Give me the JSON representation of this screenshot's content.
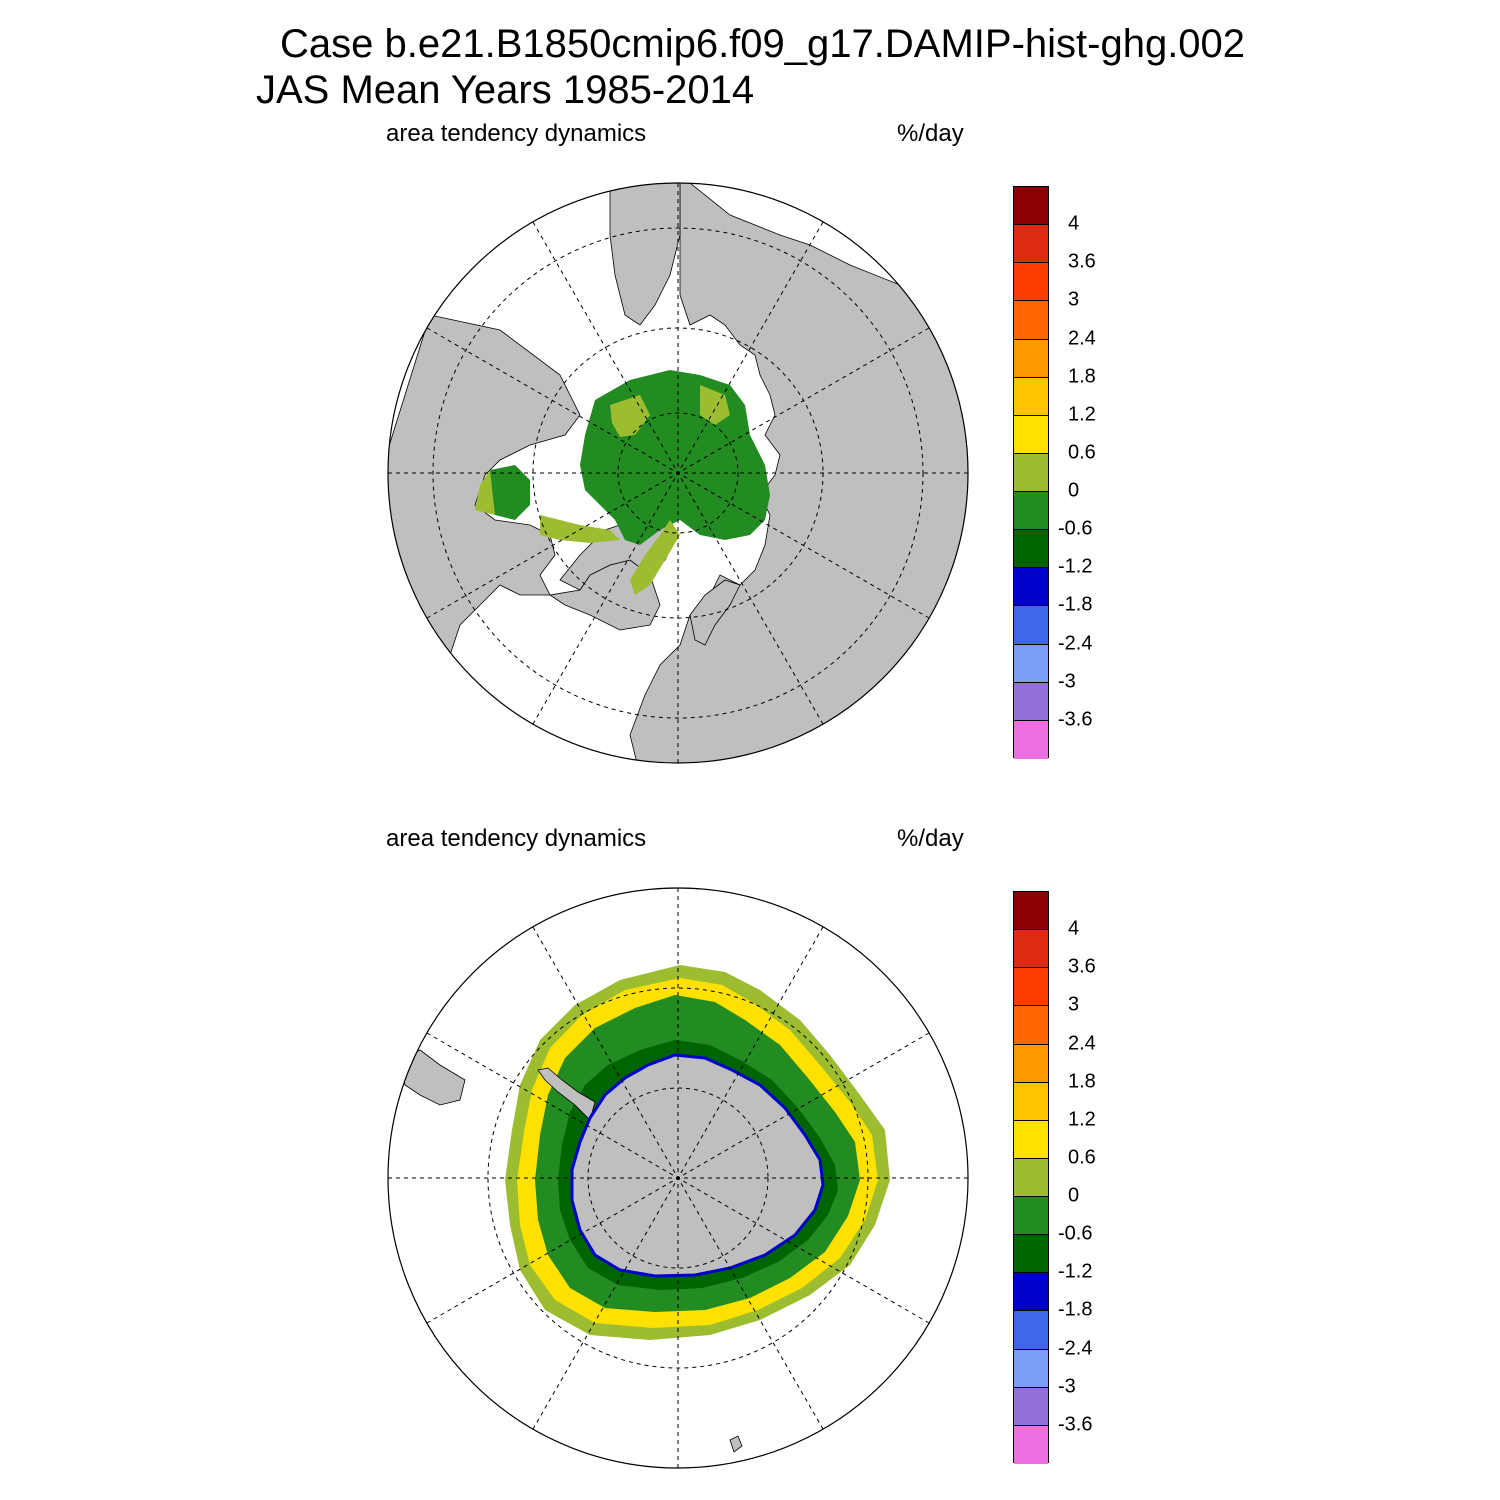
{
  "title": {
    "line1": "Case b.e21.B1850cmip6.f09_g17.DAMIP-hist-ghg.002",
    "line2": "JAS Mean   Years 1985-2014"
  },
  "panels": [
    {
      "id": "north",
      "left_label": "area tendency dynamics",
      "right_label": "%/day",
      "hemisphere": "Northern"
    },
    {
      "id": "south",
      "left_label": "area tendency dynamics",
      "right_label": "%/day",
      "hemisphere": "Southern"
    }
  ],
  "colorbar": {
    "colors": [
      "#8b0000",
      "#dd2a12",
      "#ff3c00",
      "#ff6600",
      "#ff9900",
      "#ffc400",
      "#ffe100",
      "#9bbd2f",
      "#228b22",
      "#006400",
      "#0000cd",
      "#3e68e8",
      "#7a9ef5",
      "#9370db",
      "#ee70e0"
    ],
    "labels": [
      "4",
      "3.6",
      "3",
      "2.4",
      "1.8",
      "1.2",
      "0.6",
      "0",
      "-0.6",
      "-1.2",
      "-1.8",
      "-2.4",
      "-3",
      "-3.6"
    ]
  },
  "colors": {
    "land": "#bfbfbf",
    "ocean": "#ffffff",
    "grid": "#000000"
  }
}
